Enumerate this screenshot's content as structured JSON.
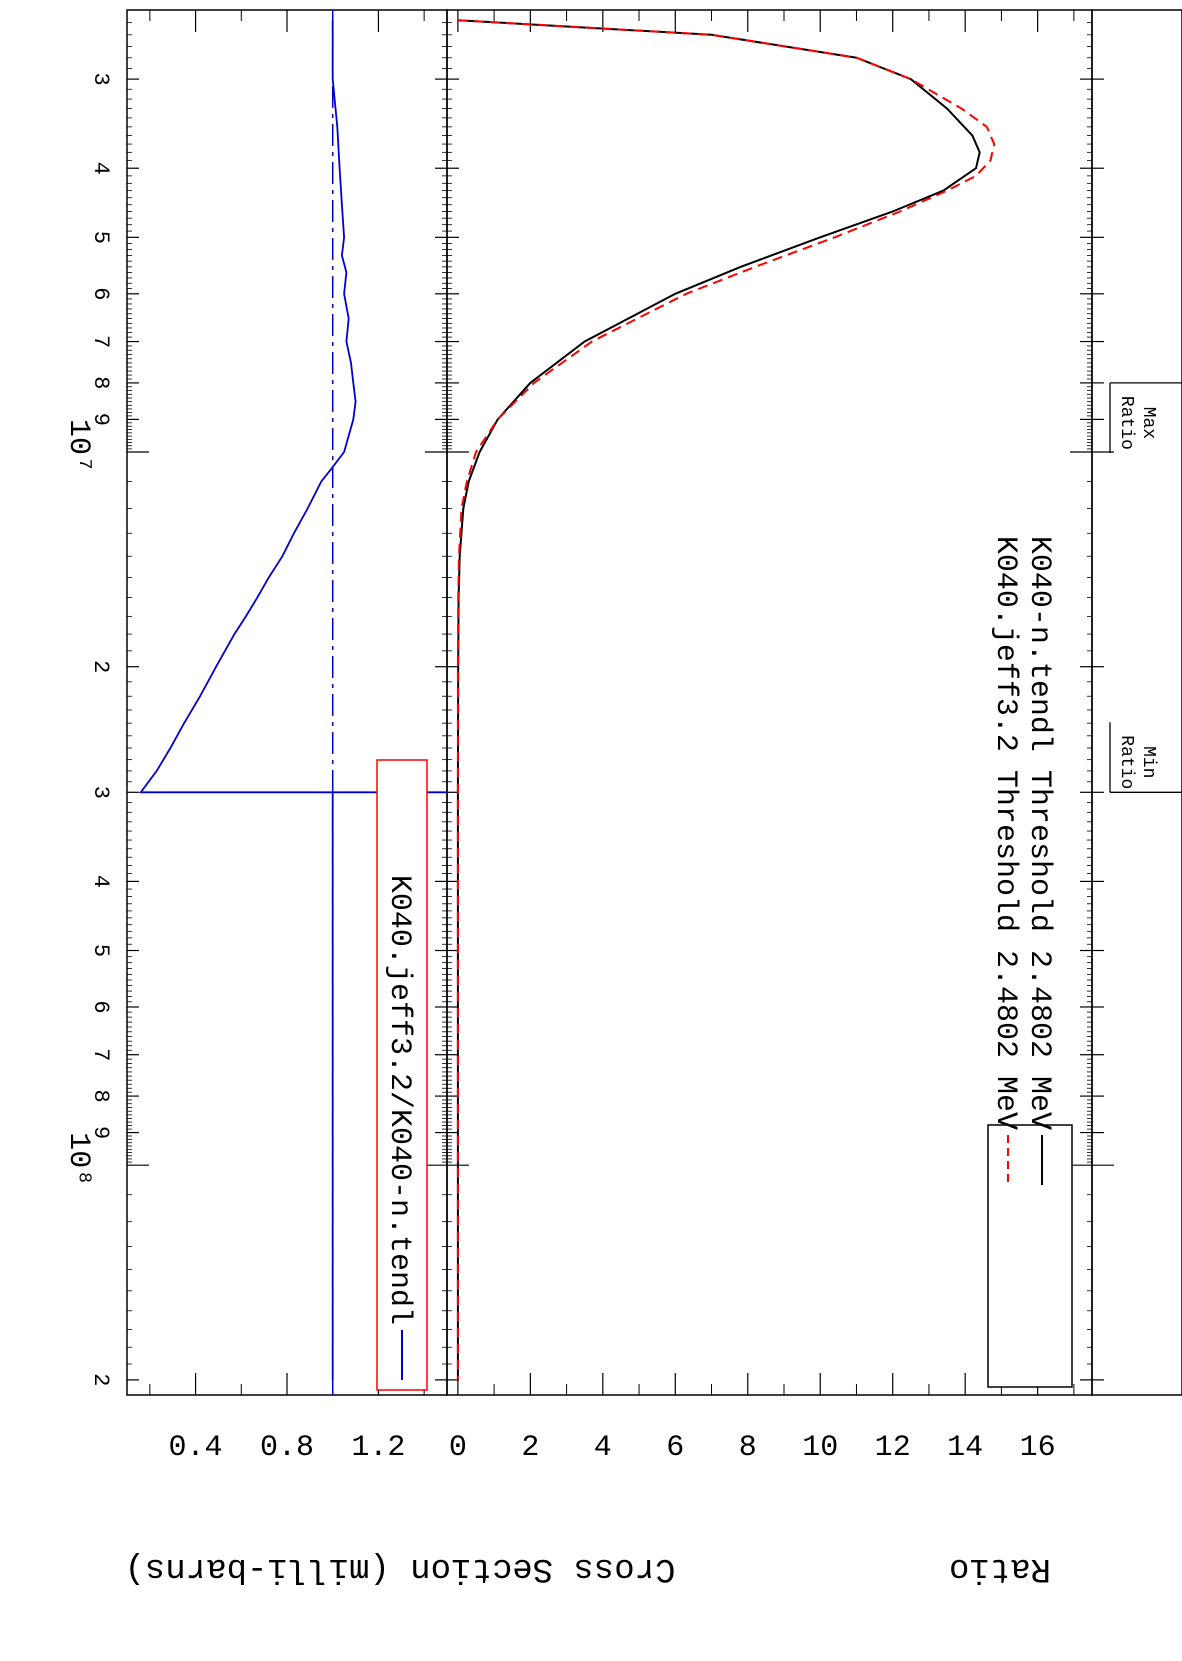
{
  "chart_data": [
    {
      "type": "line",
      "panel": "cross-section",
      "title": "",
      "xlabel": "",
      "ylabel": "Cross Section (milli-barns)",
      "xscale": "log",
      "xlim": [
        2400000,
        210000000
      ],
      "ylim": [
        -0.3,
        17.5
      ],
      "yticks": [
        0,
        2,
        4,
        6,
        8,
        10,
        12,
        14,
        16
      ],
      "legend_placement": "top-left",
      "series": [
        {
          "name": "K040-n.tendl Threshold 2.4802 MeV",
          "color": "#000000",
          "dash": "solid",
          "x": [
            2480200,
            2600000,
            2800000,
            3000000,
            3300000,
            3600000,
            3800000,
            4000000,
            4300000,
            4600000,
            5000000,
            5500000,
            6000000,
            7000000,
            8000000,
            9000000,
            10000000,
            11000000,
            12000000,
            14000000,
            16000000,
            20000000,
            30000000,
            50000000,
            100000000,
            200000000
          ],
          "y": [
            0,
            7.0,
            11.0,
            12.5,
            13.5,
            14.2,
            14.4,
            14.3,
            13.4,
            12.0,
            10.0,
            7.8,
            6.0,
            3.5,
            2.0,
            1.1,
            0.6,
            0.3,
            0.15,
            0.05,
            0.02,
            0.01,
            0.0,
            0.0,
            0.0,
            0.0
          ]
        },
        {
          "name": "K040.jeff3.2 Threshold 2.4802 MeV",
          "color": "#ff0000",
          "dash": "dashed",
          "x": [
            2480200,
            2600000,
            2800000,
            3000000,
            3300000,
            3500000,
            3700000,
            3900000,
            4100000,
            4300000,
            4600000,
            5000000,
            5500000,
            6000000,
            7000000,
            8000000,
            9000000,
            10000000,
            11000000,
            12000000,
            14000000,
            16000000,
            20000000,
            30000000,
            50000000,
            100000000,
            200000000
          ],
          "y": [
            0,
            7.0,
            11.0,
            12.5,
            13.9,
            14.6,
            14.8,
            14.7,
            14.3,
            13.5,
            12.2,
            10.4,
            8.2,
            6.3,
            3.7,
            2.1,
            1.1,
            0.5,
            0.25,
            0.1,
            0.03,
            0.01,
            0.0,
            0.0,
            0.0,
            0.0,
            0.0
          ]
        }
      ]
    },
    {
      "type": "line",
      "panel": "ratio",
      "title": "",
      "xlabel": "",
      "ylabel": "Ratio",
      "xscale": "log",
      "xlim": [
        2400000,
        210000000
      ],
      "ylim": [
        0.1,
        1.5
      ],
      "yticks": [
        0.4,
        0.8,
        1.2
      ],
      "xtick_major_labels": [
        "10⁷",
        "10⁸"
      ],
      "xtick_minor_labels": [
        {
          "x": 3000000,
          "label": "3"
        },
        {
          "x": 4000000,
          "label": "4"
        },
        {
          "x": 5000000,
          "label": "5"
        },
        {
          "x": 6000000,
          "label": "6"
        },
        {
          "x": 7000000,
          "label": "7"
        },
        {
          "x": 8000000,
          "label": "8"
        },
        {
          "x": 9000000,
          "label": "9"
        },
        {
          "x": 20000000,
          "label": "2"
        },
        {
          "x": 30000000,
          "label": "3"
        },
        {
          "x": 40000000,
          "label": "4"
        },
        {
          "x": 50000000,
          "label": "5"
        },
        {
          "x": 60000000,
          "label": "6"
        },
        {
          "x": 70000000,
          "label": "7"
        },
        {
          "x": 80000000,
          "label": "8"
        },
        {
          "x": 90000000,
          "label": "9"
        },
        {
          "x": 200000000,
          "label": "2"
        }
      ],
      "reference_line": 1.0,
      "legend_placement": "top-left",
      "series": [
        {
          "name": "K040.jeff3.2/K040-n.tendl",
          "color": "#0000cc",
          "dash": "solid",
          "x": [
            2480200,
            2700000,
            3000000,
            3500000,
            4000000,
            4500000,
            5000000,
            5300000,
            5600000,
            6000000,
            6500000,
            7000000,
            7500000,
            8000000,
            8500000,
            9000000,
            10000000,
            10500000,
            11000000,
            12000000,
            13000000,
            14000000,
            15000000,
            16000000,
            17000000,
            18000000,
            20000000,
            22000000,
            24000000,
            26000000,
            28000000,
            30000000,
            30000000,
            30010000,
            200000000
          ],
          "y": [
            1.0,
            1.0,
            1.0,
            1.02,
            1.03,
            1.04,
            1.05,
            1.04,
            1.06,
            1.05,
            1.07,
            1.06,
            1.08,
            1.09,
            1.1,
            1.09,
            1.05,
            1.0,
            0.95,
            0.89,
            0.83,
            0.78,
            0.72,
            0.67,
            0.62,
            0.57,
            0.49,
            0.42,
            0.35,
            0.29,
            0.23,
            0.16,
            1.5,
            1.0,
            1.0
          ]
        }
      ]
    }
  ],
  "annotations": {
    "max_ratio": {
      "line1": "Max",
      "line2": "Ratio",
      "x": 8000000
    },
    "min_ratio": {
      "line1": "Min",
      "line2": "Ratio",
      "x": 30000000
    }
  }
}
